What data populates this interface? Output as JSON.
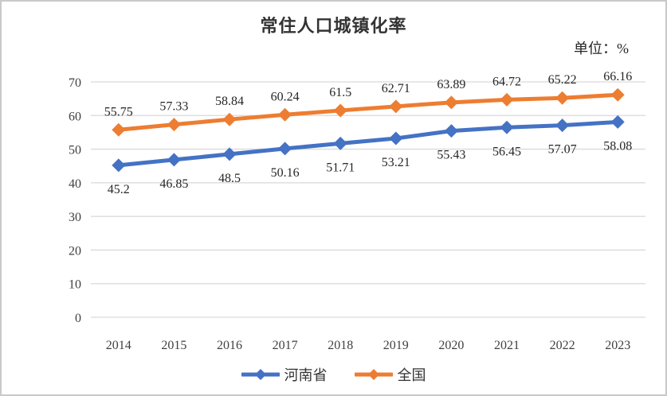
{
  "chart_data": {
    "type": "line",
    "title": "常住人口城镇化率",
    "unit_label": "单位：%",
    "categories": [
      "2014",
      "2015",
      "2016",
      "2017",
      "2018",
      "2019",
      "2020",
      "2021",
      "2022",
      "2023"
    ],
    "series": [
      {
        "name": "河南省",
        "color": "#4472C4",
        "marker": "diamond",
        "label_position": "below",
        "values": [
          45.2,
          46.85,
          48.5,
          50.16,
          51.71,
          53.21,
          55.43,
          56.45,
          57.07,
          58.08
        ]
      },
      {
        "name": "全国",
        "color": "#ED7D31",
        "marker": "diamond",
        "label_position": "above",
        "values": [
          55.75,
          57.33,
          58.84,
          60.24,
          61.5,
          62.71,
          63.89,
          64.72,
          65.22,
          66.16
        ]
      }
    ],
    "ylim": [
      0,
      70
    ],
    "yticks": [
      0,
      10,
      20,
      30,
      40,
      50,
      60,
      70
    ],
    "grid": true,
    "legend_position": "bottom",
    "colors": {
      "gridline": "#D9D9D9",
      "axis_text": "#404040",
      "data_label_text": "#262626",
      "border": "#C9C9C9"
    }
  }
}
